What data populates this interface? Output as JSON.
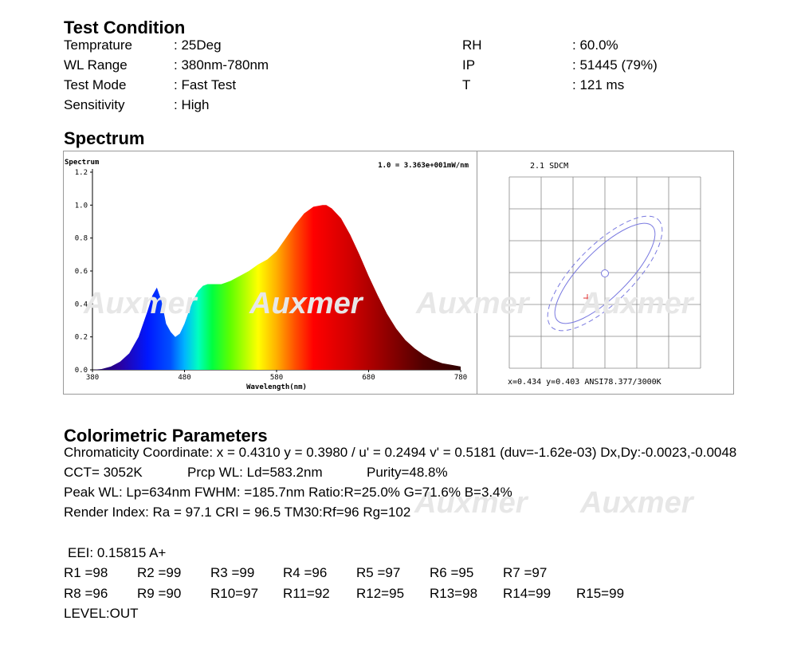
{
  "test_condition": {
    "title": "Test Condition",
    "rows": [
      {
        "label": "Temprature",
        "value": ": 25Deg"
      },
      {
        "label": "WL Range",
        "value": ": 380nm-780nm"
      },
      {
        "label": "Test Mode",
        "value": ": Fast Test"
      },
      {
        "label": "Sensitivity",
        "value": ": High"
      }
    ],
    "rows_right": [
      {
        "label": "RH",
        "value": ": 60.0%"
      },
      {
        "label": "IP",
        "value": ": 51445 (79%)"
      },
      {
        "label": "T",
        "value": ": 121 ms"
      }
    ]
  },
  "spectrum": {
    "title": "Spectrum"
  },
  "watermark": "Auxmer",
  "chart_data": [
    {
      "type": "area",
      "title": "",
      "ylabel": "Spectrum",
      "xlabel": "Wavelength(nm)",
      "scale_note": "1.0 = 3.363e+001mW/nm",
      "xlim": [
        380,
        780
      ],
      "ylim": [
        0,
        1.2
      ],
      "xticks": [
        380,
        480,
        580,
        680,
        780
      ],
      "yticks": [
        "0.0",
        "0.2",
        "0.4",
        "0.6",
        "0.8",
        "1.0",
        "1.2"
      ],
      "x": [
        380,
        390,
        400,
        410,
        420,
        430,
        440,
        445,
        450,
        455,
        460,
        465,
        470,
        475,
        480,
        485,
        490,
        495,
        500,
        505,
        510,
        515,
        520,
        525,
        530,
        540,
        550,
        560,
        570,
        580,
        590,
        600,
        610,
        620,
        630,
        634,
        640,
        650,
        660,
        670,
        680,
        690,
        700,
        710,
        720,
        730,
        740,
        750,
        760,
        770,
        780
      ],
      "y": [
        0,
        0.005,
        0.02,
        0.05,
        0.1,
        0.2,
        0.36,
        0.45,
        0.5,
        0.42,
        0.28,
        0.23,
        0.2,
        0.22,
        0.28,
        0.36,
        0.43,
        0.48,
        0.51,
        0.52,
        0.52,
        0.52,
        0.52,
        0.53,
        0.54,
        0.57,
        0.6,
        0.64,
        0.67,
        0.72,
        0.8,
        0.88,
        0.95,
        0.99,
        1.0,
        1.0,
        0.98,
        0.92,
        0.82,
        0.7,
        0.57,
        0.45,
        0.34,
        0.25,
        0.18,
        0.13,
        0.09,
        0.06,
        0.04,
        0.03,
        0.02
      ]
    },
    {
      "type": "scatter",
      "title": "2.1 SDCM",
      "footer": "x=0.434 y=0.403 ANSI78.377/3000K",
      "point": {
        "x": 0.434,
        "y": 0.403
      },
      "grid": true
    }
  ],
  "colorimetric": {
    "title": "Colorimetric Parameters",
    "line1": "Chromaticity Coordinate: x = 0.4310 y = 0.3980 / u' = 0.2494 v' = 0.5181 (duv=-1.62e-03)   Dx,Dy:-0.0023,-0.0048",
    "cct": "CCT=  3052K",
    "prcp": "Prcp WL:    Ld=583.2nm",
    "purity": "Purity=48.8%",
    "line3": "Peak WL:  Lp=634nm  FWHM:   =185.7nm  Ratio:R=25.0% G=71.6% B=3.4%",
    "line4": "Render Index: Ra = 97.1 CRI = 96.5 TM30:Rf=96 Rg=102",
    "eei": "EEI: 0.15815 A+",
    "r_row1": [
      "R1 =98",
      "R2 =99",
      "R3 =99",
      "R4 =96",
      "R5 =97",
      "R6 =95",
      "R7 =97"
    ],
    "r_row2": [
      "R8 =96",
      "R9 =90",
      "R10=97",
      "R11=92",
      "R12=95",
      "R13=98",
      "R14=99",
      "R15=99"
    ],
    "level": "LEVEL:OUT"
  }
}
